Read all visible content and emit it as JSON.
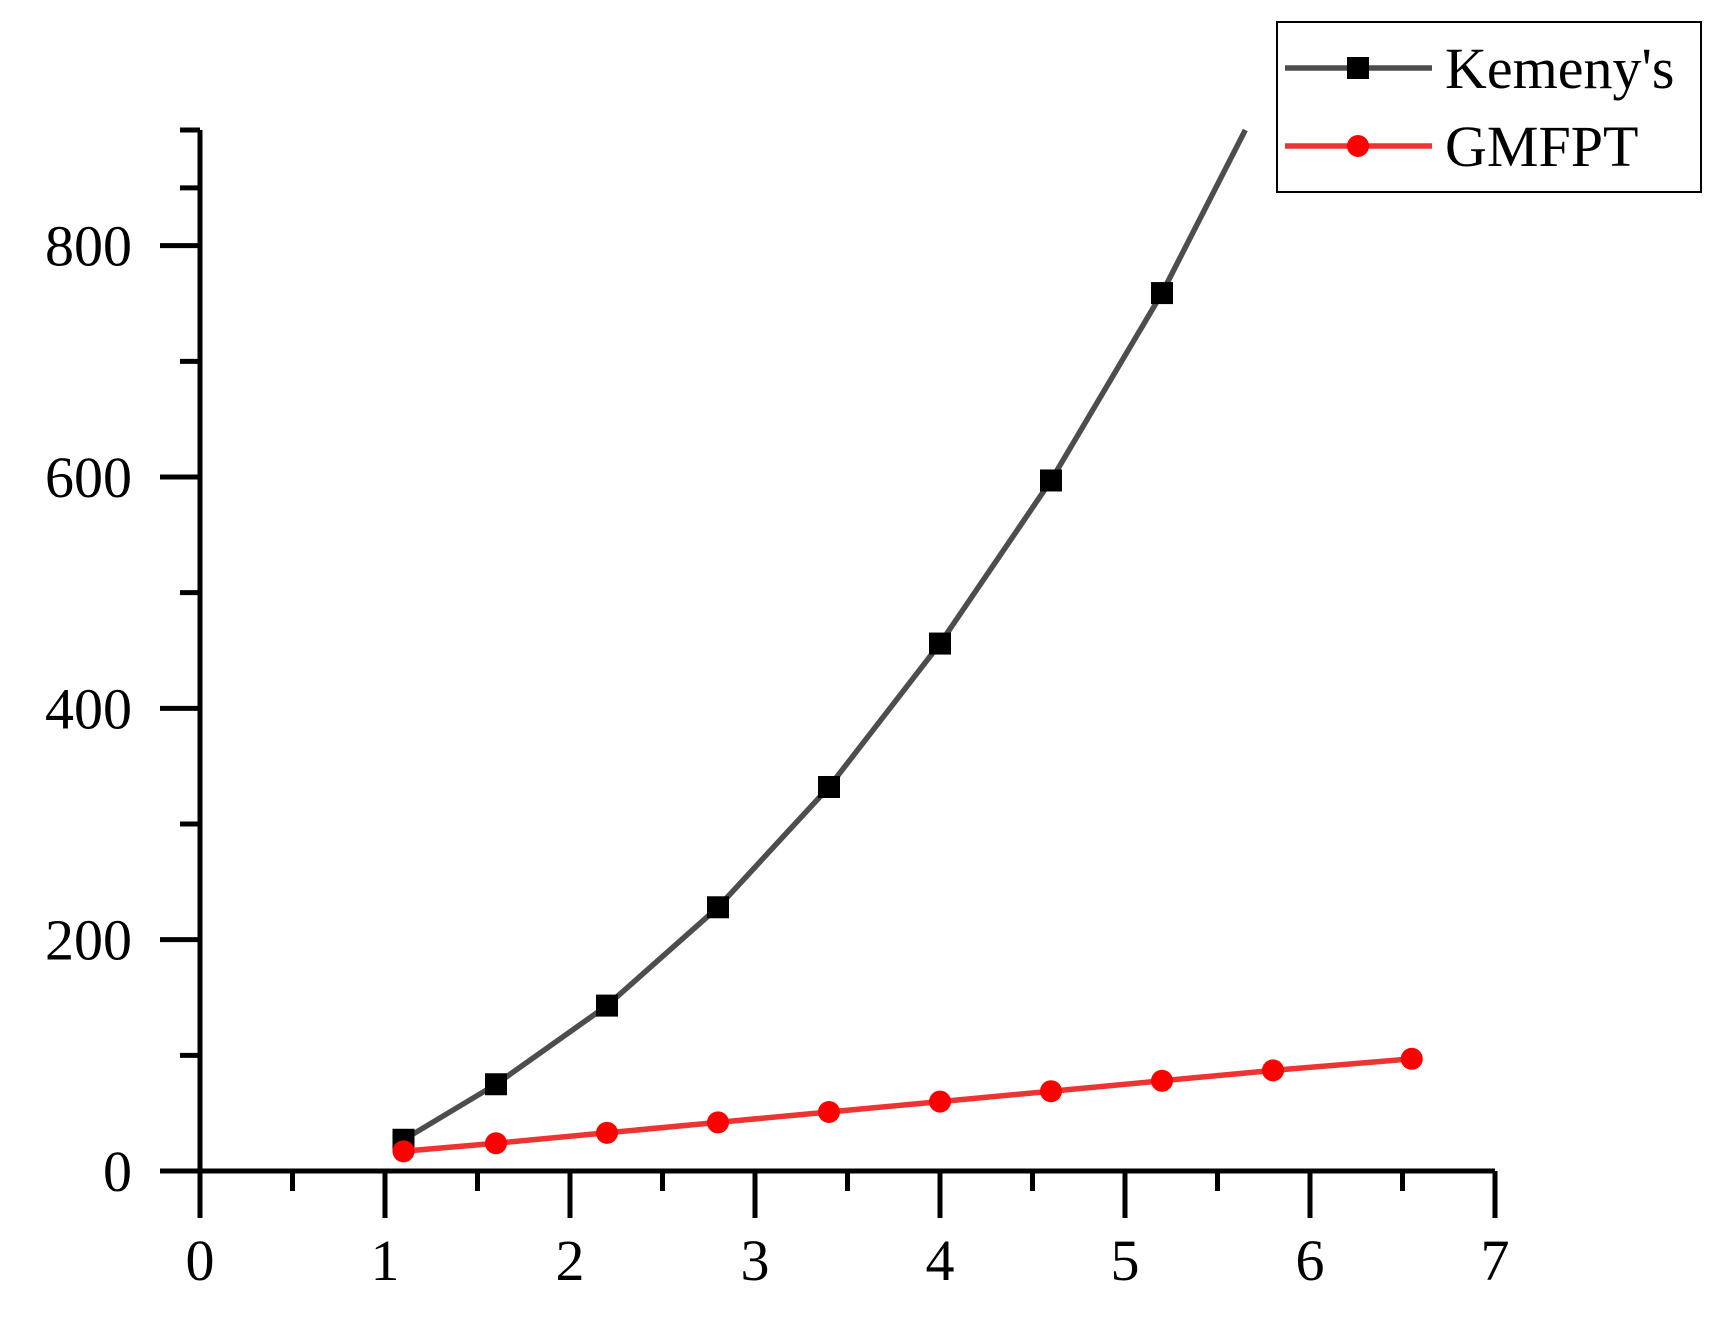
{
  "chart_data": {
    "type": "line",
    "title": "",
    "xlabel": "",
    "ylabel": "",
    "xlim": [
      0,
      7
    ],
    "ylim": [
      0,
      900
    ],
    "x_ticks": [
      0,
      1,
      2,
      3,
      4,
      5,
      6,
      7
    ],
    "y_ticks": [
      0,
      200,
      400,
      600,
      800
    ],
    "grid": false,
    "legend_position": "top-right",
    "series": [
      {
        "name": "Kemeny's",
        "color": "#4d4d4d",
        "marker": "square",
        "marker_color": "#000000",
        "x": [
          1.1,
          1.6,
          2.2,
          2.8,
          3.4,
          4.0,
          4.6,
          5.2
        ],
        "y": [
          27,
          75,
          143,
          228,
          332,
          456,
          597,
          759
        ],
        "curve_extends_to": {
          "x": 5.65,
          "y": 900
        }
      },
      {
        "name": "GMFPT",
        "color": "#ee3333",
        "marker": "circle",
        "marker_color": "#ff0000",
        "x": [
          1.1,
          1.6,
          2.2,
          2.8,
          3.4,
          4.0,
          4.6,
          5.2,
          5.8,
          6.55
        ],
        "y": [
          17,
          24,
          33,
          42,
          51,
          60,
          69,
          78,
          87,
          97
        ]
      }
    ]
  }
}
